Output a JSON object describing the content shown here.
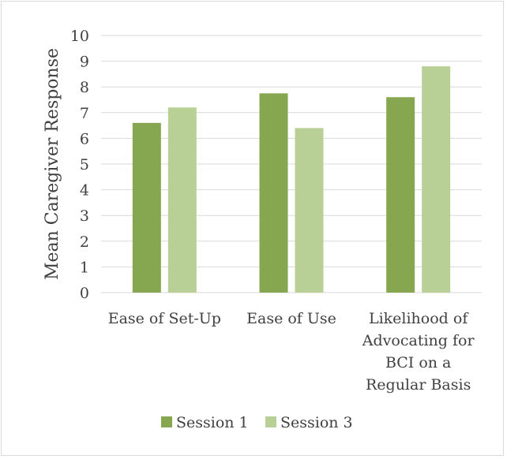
{
  "chart_data": {
    "type": "bar",
    "title": "",
    "xlabel": "",
    "ylabel": "Mean Caregiver Response",
    "ylim": [
      0,
      10
    ],
    "yticks": [
      0,
      1,
      2,
      3,
      4,
      5,
      6,
      7,
      8,
      9,
      10
    ],
    "grid": true,
    "legend_position": "bottom",
    "categories": [
      [
        "Ease of Set-Up"
      ],
      [
        "Ease of Use"
      ],
      [
        "Likelihood of",
        "Advocating for",
        "BCI on a",
        "Regular Basis"
      ]
    ],
    "series": [
      {
        "name": "Session 1",
        "color": "#86a64f",
        "values": [
          6.6,
          7.75,
          7.6
        ]
      },
      {
        "name": "Session 3",
        "color": "#b8cf96",
        "values": [
          7.2,
          6.4,
          8.8
        ]
      }
    ]
  }
}
